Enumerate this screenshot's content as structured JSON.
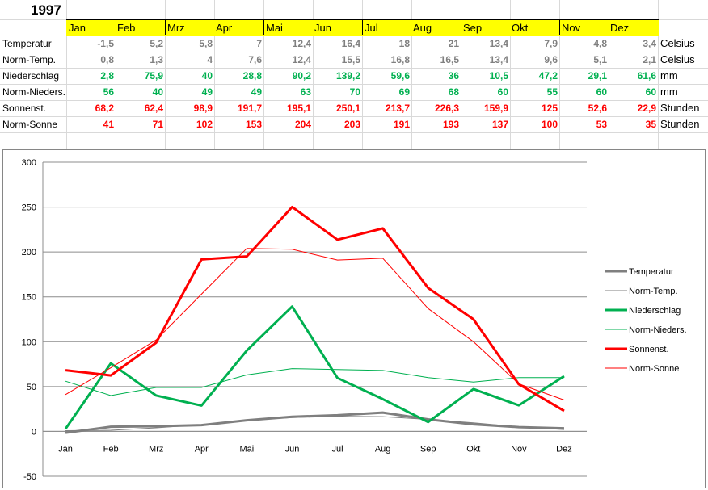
{
  "sheet": {
    "year": "1997",
    "months": [
      "Jan",
      "Feb",
      "Mrz",
      "Apr",
      "Mai",
      "Jun",
      "Jul",
      "Aug",
      "Sep",
      "Okt",
      "Nov",
      "Dez"
    ],
    "rows": [
      {
        "label": "Temperatur",
        "unit": "Celsius",
        "color": "#808080",
        "values": [
          "-1,5",
          "5,2",
          "5,8",
          "7",
          "12,4",
          "16,4",
          "18",
          "21",
          "13,4",
          "7,9",
          "4,8",
          "3,4"
        ]
      },
      {
        "label": "Norm-Temp.",
        "unit": "Celsius",
        "color": "#808080",
        "values": [
          "0,8",
          "1,3",
          "4",
          "7,6",
          "12,4",
          "15,5",
          "16,8",
          "16,5",
          "13,4",
          "9,6",
          "5,1",
          "2,1"
        ]
      },
      {
        "label": "Niederschlag",
        "unit": "mm",
        "color": "#00b050",
        "values": [
          "2,8",
          "75,9",
          "40",
          "28,8",
          "90,2",
          "139,2",
          "59,6",
          "36",
          "10,5",
          "47,2",
          "29,1",
          "61,6"
        ]
      },
      {
        "label": "Norm-Nieders.",
        "unit": "mm",
        "color": "#00b050",
        "values": [
          "56",
          "40",
          "49",
          "49",
          "63",
          "70",
          "69",
          "68",
          "60",
          "55",
          "60",
          "60"
        ]
      },
      {
        "label": "Sonnenst.",
        "unit": "Stunden",
        "color": "#ff0000",
        "values": [
          "68,2",
          "62,4",
          "98,9",
          "191,7",
          "195,1",
          "250,1",
          "213,7",
          "226,3",
          "159,9",
          "125",
          "52,6",
          "22,9"
        ]
      },
      {
        "label": "Norm-Sonne",
        "unit": "Stunden",
        "color": "#ff0000",
        "values": [
          "41",
          "71",
          "102",
          "153",
          "204",
          "203",
          "191",
          "193",
          "137",
          "100",
          "53",
          "35"
        ]
      }
    ]
  },
  "chart_data": {
    "type": "line",
    "title": "",
    "xlabel": "",
    "ylabel": "",
    "categories": [
      "Jan",
      "Feb",
      "Mrz",
      "Apr",
      "Mai",
      "Jun",
      "Jul",
      "Aug",
      "Sep",
      "Okt",
      "Nov",
      "Dez"
    ],
    "ylim": [
      -50,
      300
    ],
    "yticks": [
      -50,
      0,
      50,
      100,
      150,
      200,
      250,
      300
    ],
    "grid": "horizontal",
    "legend": "right",
    "series": [
      {
        "name": "Temperatur",
        "color": "#7f7f7f",
        "width": "thick",
        "values": [
          -1.5,
          5.2,
          5.8,
          7,
          12.4,
          16.4,
          18,
          21,
          13.4,
          7.9,
          4.8,
          3.4
        ]
      },
      {
        "name": "Norm-Temp.",
        "color": "#7f7f7f",
        "width": "thin",
        "values": [
          0.8,
          1.3,
          4,
          7.6,
          12.4,
          15.5,
          16.8,
          16.5,
          13.4,
          9.6,
          5.1,
          2.1
        ]
      },
      {
        "name": "Niederschlag",
        "color": "#00b050",
        "width": "thick",
        "values": [
          2.8,
          75.9,
          40,
          28.8,
          90.2,
          139.2,
          59.6,
          36,
          10.5,
          47.2,
          29.1,
          61.6
        ]
      },
      {
        "name": "Norm-Nieders.",
        "color": "#00b050",
        "width": "thin",
        "values": [
          56,
          40,
          49,
          49,
          63,
          70,
          69,
          68,
          60,
          55,
          60,
          60
        ]
      },
      {
        "name": "Sonnenst.",
        "color": "#ff0000",
        "width": "thick",
        "values": [
          68.2,
          62.4,
          98.9,
          191.7,
          195.1,
          250.1,
          213.7,
          226.3,
          159.9,
          125,
          52.6,
          22.9
        ]
      },
      {
        "name": "Norm-Sonne",
        "color": "#ff0000",
        "width": "thin",
        "values": [
          41,
          71,
          102,
          153,
          204,
          203,
          191,
          193,
          137,
          100,
          53,
          35
        ]
      }
    ]
  }
}
